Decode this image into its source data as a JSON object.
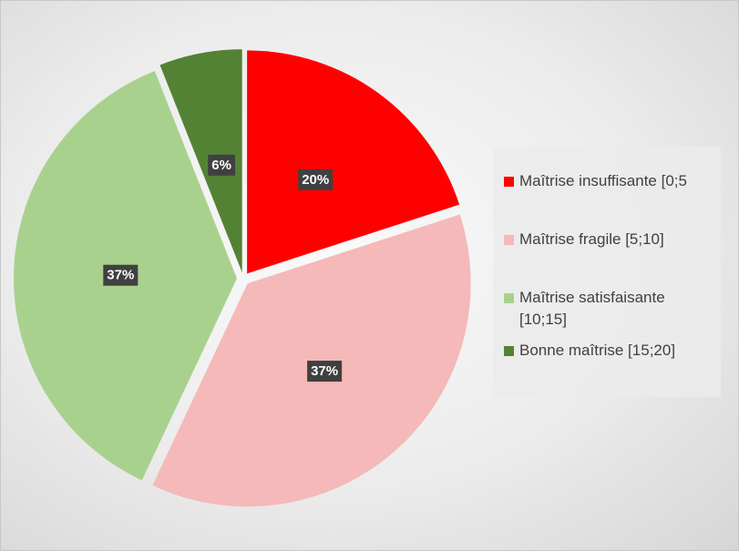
{
  "chart_data": {
    "type": "pie",
    "categories": [
      "Maîtrise insuffisante [0;5",
      "Maîtrise fragile [5;10]",
      "Maîtrise satisfaisante [10;15]",
      "Bonne maîtrise [15;20]"
    ],
    "values": [
      20,
      37,
      37,
      6
    ],
    "value_labels": [
      "20%",
      "37%",
      "37%",
      "6%"
    ],
    "colors": [
      "#ff0000",
      "#f4b9b8",
      "#a9d18e",
      "#548235"
    ],
    "legend": "right"
  }
}
